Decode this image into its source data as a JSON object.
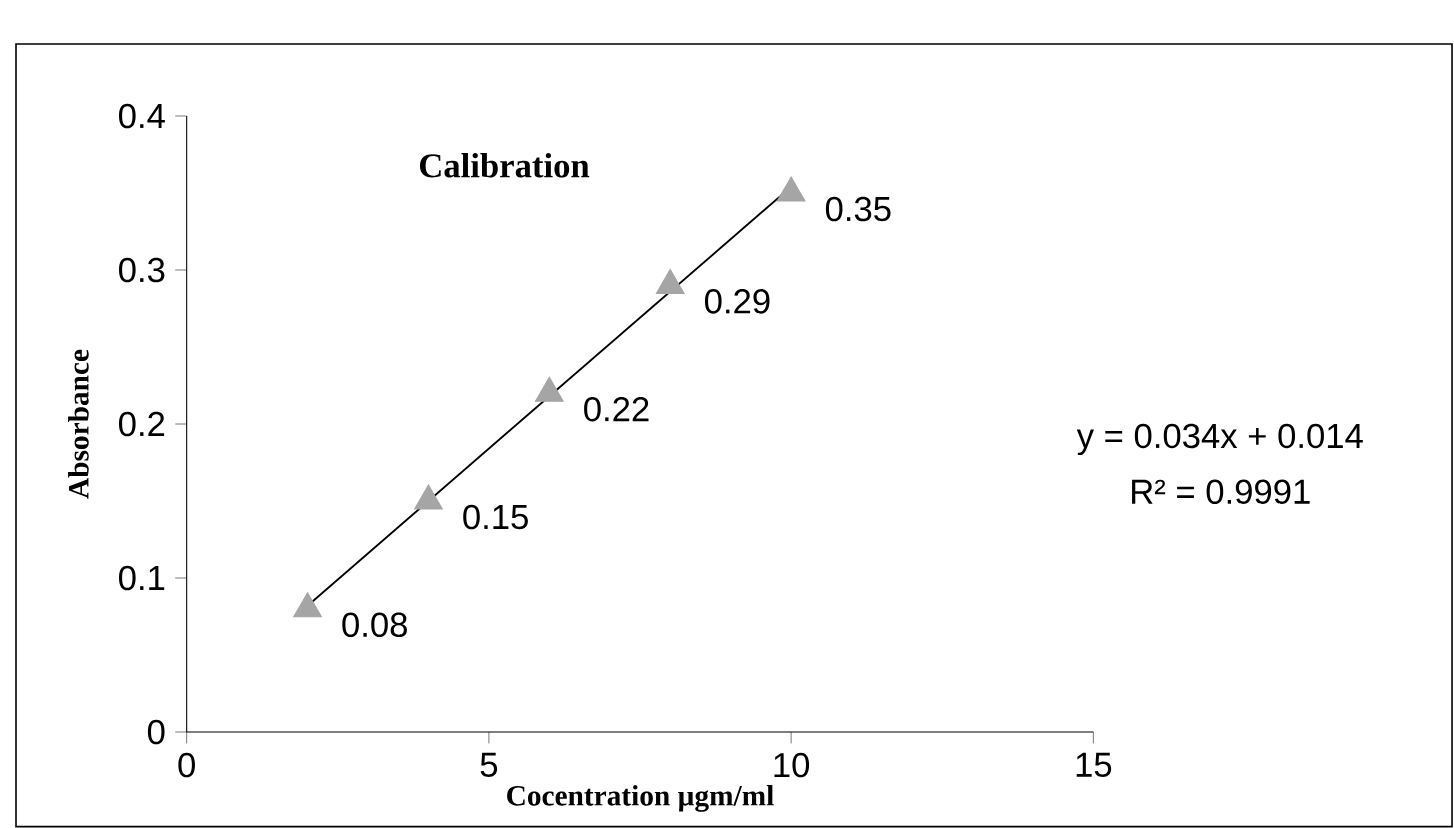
{
  "chart_data": {
    "type": "scatter",
    "title": "Calibration",
    "xlabel": "Cocentration µgm/ml",
    "ylabel": "Absorbance",
    "xlim": [
      0,
      15
    ],
    "xticks": [
      0,
      5,
      10,
      15
    ],
    "ylim": [
      0,
      0.4
    ],
    "yticks": [
      0,
      0.1,
      0.2,
      0.3,
      0.4
    ],
    "marker": "triangle",
    "series": [
      {
        "color": "#a5a5a5",
        "x": [
          2,
          4,
          6,
          8,
          10
        ],
        "values": [
          0.08,
          0.15,
          0.22,
          0.29,
          0.35
        ],
        "value_labels": [
          "0.08",
          "0.15",
          "0.22",
          "0.29",
          "0.35"
        ]
      },
      {
        "type": "line",
        "marker": "none",
        "color": "#000000",
        "x": [
          2,
          10
        ],
        "values": [
          0.082,
          0.354
        ]
      }
    ],
    "annotations": [
      "y = 0.034x + 0.014",
      "R² = 0.9991"
    ]
  }
}
